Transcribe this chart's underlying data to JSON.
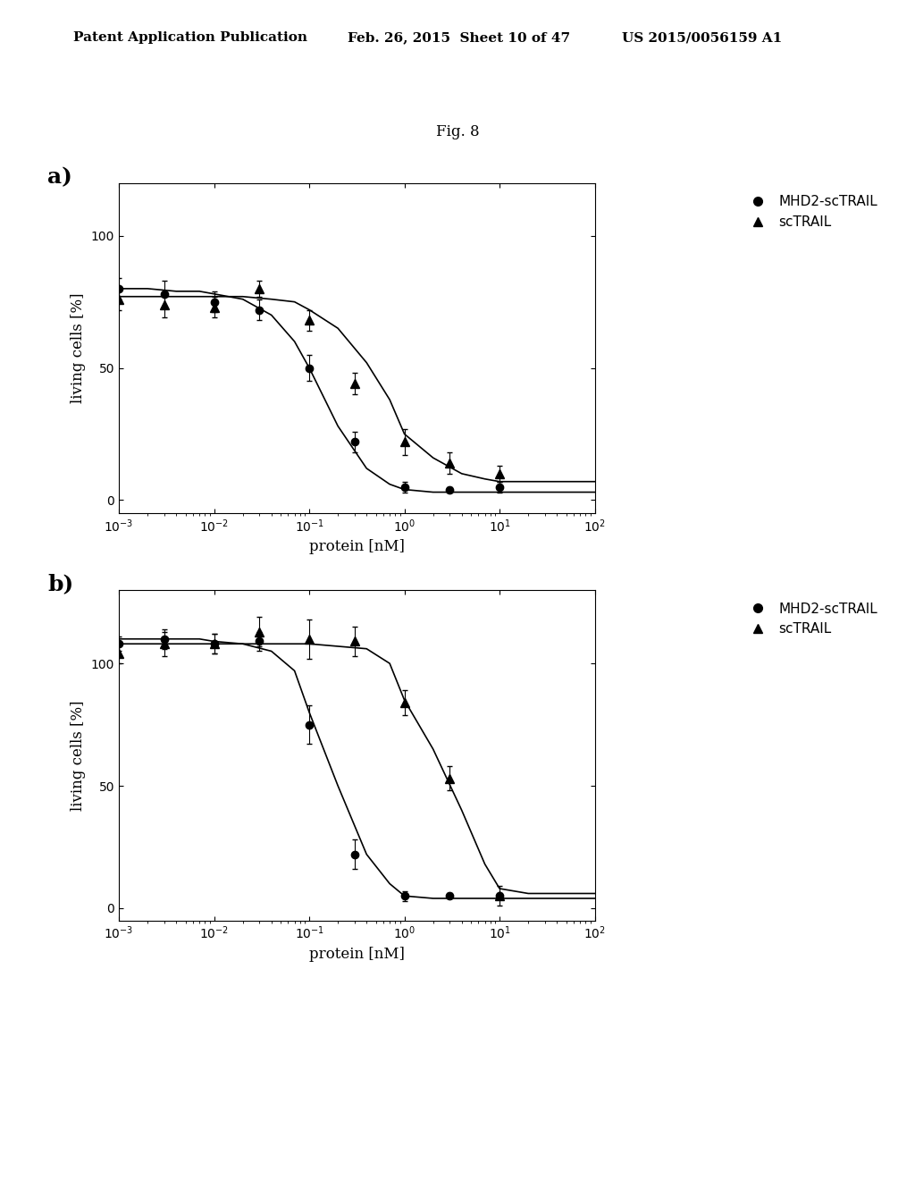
{
  "header_left": "Patent Application Publication",
  "header_mid": "Feb. 26, 2015  Sheet 10 of 47",
  "header_right": "US 2015/0056159 A1",
  "fig_label": "Fig. 8",
  "background_color": "#ffffff",
  "text_color": "#000000",
  "subplot_a": {
    "label": "a)",
    "mhd2_x": [
      0.001,
      0.003,
      0.01,
      0.03,
      0.1,
      0.3,
      1.0,
      3.0,
      10.0
    ],
    "mhd2_y": [
      80,
      78,
      75,
      72,
      50,
      22,
      5,
      4,
      5
    ],
    "mhd2_yerr": [
      4,
      5,
      4,
      4,
      5,
      4,
      2,
      1,
      2
    ],
    "sctrail_x": [
      0.001,
      0.003,
      0.01,
      0.03,
      0.1,
      0.3,
      1.0,
      3.0,
      10.0
    ],
    "sctrail_y": [
      76,
      74,
      73,
      80,
      68,
      44,
      22,
      14,
      10
    ],
    "sctrail_yerr": [
      4,
      5,
      4,
      3,
      4,
      4,
      5,
      4,
      3
    ],
    "mhd2_curve_x": [
      0.001,
      0.002,
      0.004,
      0.007,
      0.01,
      0.02,
      0.04,
      0.07,
      0.1,
      0.2,
      0.4,
      0.7,
      1.0,
      2.0,
      4.0,
      7.0,
      10.0,
      20.0,
      50.0,
      100.0
    ],
    "mhd2_curve_y": [
      80,
      80,
      79,
      79,
      78,
      76,
      70,
      60,
      50,
      28,
      12,
      6,
      4,
      3,
      3,
      3,
      3,
      3,
      3,
      3
    ],
    "sctrail_curve_x": [
      0.001,
      0.002,
      0.004,
      0.007,
      0.01,
      0.02,
      0.04,
      0.07,
      0.1,
      0.2,
      0.4,
      0.7,
      1.0,
      2.0,
      4.0,
      7.0,
      10.0,
      20.0,
      50.0,
      100.0
    ],
    "sctrail_curve_y": [
      77,
      77,
      77,
      77,
      77,
      77,
      76,
      75,
      72,
      65,
      52,
      38,
      25,
      16,
      10,
      8,
      7,
      7,
      7,
      7
    ],
    "xlabel": "protein [nM]",
    "ylabel": "living cells [%]",
    "xlim_log": [
      -3,
      2
    ],
    "ylim": [
      -5,
      120
    ],
    "yticks": [
      0,
      50,
      100
    ],
    "legend_mhd2": "MHD2-scTRAIL",
    "legend_sctrail": "scTRAIL"
  },
  "subplot_b": {
    "label": "b)",
    "mhd2_x": [
      0.001,
      0.003,
      0.01,
      0.03,
      0.1,
      0.3,
      1.0,
      3.0,
      10.0
    ],
    "mhd2_y": [
      108,
      110,
      108,
      109,
      75,
      22,
      5,
      5,
      5
    ],
    "mhd2_yerr": [
      3,
      4,
      4,
      4,
      8,
      6,
      2,
      1,
      1
    ],
    "sctrail_x": [
      0.001,
      0.003,
      0.01,
      0.03,
      0.1,
      0.3,
      1.0,
      3.0,
      10.0
    ],
    "sctrail_y": [
      104,
      108,
      108,
      113,
      110,
      109,
      84,
      53,
      5
    ],
    "sctrail_yerr": [
      4,
      5,
      4,
      6,
      8,
      6,
      5,
      5,
      4
    ],
    "mhd2_curve_x": [
      0.001,
      0.002,
      0.004,
      0.007,
      0.01,
      0.02,
      0.04,
      0.07,
      0.1,
      0.2,
      0.4,
      0.7,
      1.0,
      2.0,
      4.0,
      7.0,
      10.0,
      20.0,
      50.0,
      100.0
    ],
    "mhd2_curve_y": [
      110,
      110,
      110,
      110,
      109,
      108,
      105,
      97,
      80,
      50,
      22,
      10,
      5,
      4,
      4,
      4,
      4,
      4,
      4,
      4
    ],
    "sctrail_curve_x": [
      0.001,
      0.002,
      0.004,
      0.007,
      0.01,
      0.02,
      0.04,
      0.07,
      0.1,
      0.2,
      0.4,
      0.7,
      1.0,
      2.0,
      4.0,
      7.0,
      10.0,
      20.0,
      50.0,
      100.0
    ],
    "sctrail_curve_y": [
      108,
      108,
      108,
      108,
      108,
      108,
      108,
      108,
      108,
      107,
      106,
      100,
      85,
      65,
      40,
      18,
      8,
      6,
      6,
      6
    ],
    "xlabel": "protein [nM]",
    "ylabel": "living cells [%]",
    "xlim_log": [
      -3,
      2
    ],
    "ylim": [
      -5,
      130
    ],
    "yticks": [
      0,
      50,
      100
    ],
    "legend_mhd2": "MHD2-scTRAIL",
    "legend_sctrail": "scTRAIL"
  }
}
